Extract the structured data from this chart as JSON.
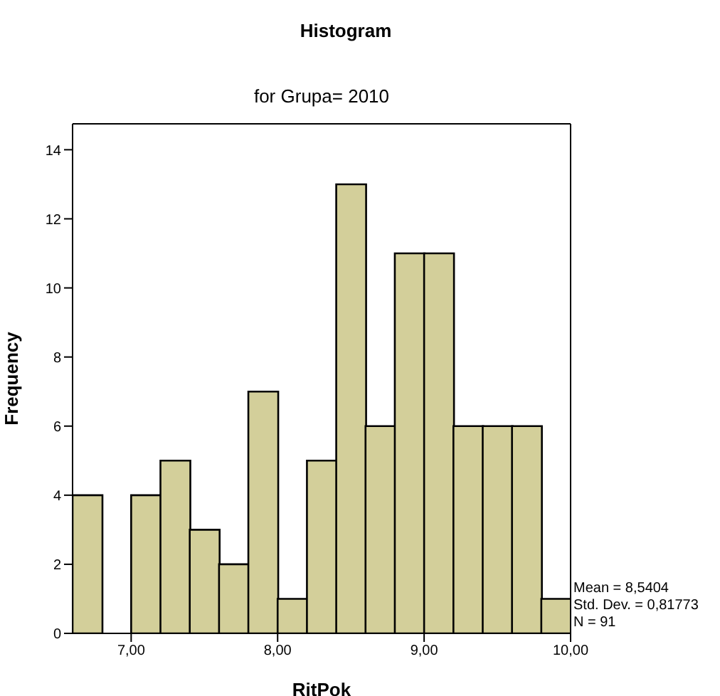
{
  "chart_data": {
    "type": "histogram",
    "title": "Histogram",
    "subtitle": "for Grupa= 2010",
    "xlabel": "RitPok",
    "ylabel": "Frequency",
    "bins": [
      6.6,
      6.8,
      7.0,
      7.2,
      7.4,
      7.6,
      7.8,
      8.0,
      8.2,
      8.4,
      8.6,
      8.8,
      9.0,
      9.2,
      9.4,
      9.6,
      9.8,
      10.0
    ],
    "values": [
      4,
      0,
      4,
      5,
      3,
      2,
      7,
      1,
      5,
      13,
      6,
      11,
      11,
      6,
      6,
      6,
      1
    ],
    "color": "#d3cf9a",
    "xlim": [
      6.6,
      10.0
    ],
    "xticks": [
      {
        "value": 7,
        "label": "7,00"
      },
      {
        "value": 8,
        "label": "8,00"
      },
      {
        "value": 9,
        "label": "9,00"
      },
      {
        "value": 10,
        "label": "10,00"
      }
    ],
    "ylim": [
      0,
      14.75
    ],
    "yticks": [
      0,
      2,
      4,
      6,
      8,
      10,
      12,
      14
    ],
    "grid": false,
    "annotations": [
      "Mean = 8,5404",
      "Std. Dev. = 0,81773",
      "N = 91"
    ]
  }
}
